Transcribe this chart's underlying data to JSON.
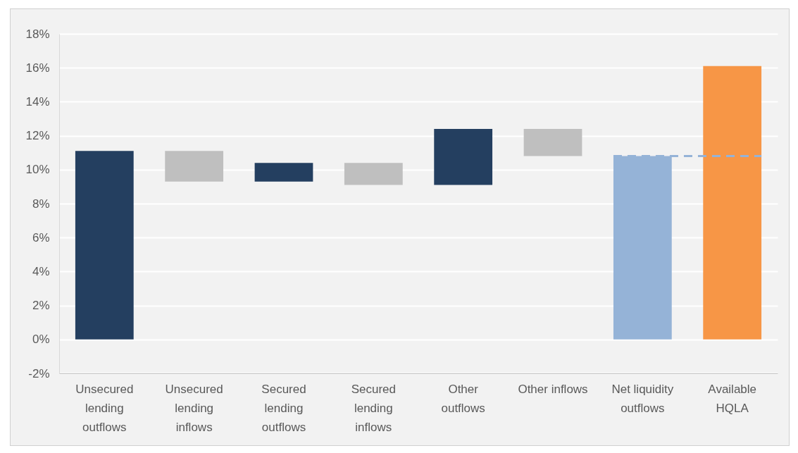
{
  "chart_data": {
    "type": "bar",
    "categories": [
      "Unsecured lending outflows",
      "Unsecured lending inflows",
      "Secured lending outflows",
      "Secured lending inflows",
      "Other outflows",
      "Other inflows",
      "Net liquidity outflows",
      "Available HQLA"
    ],
    "values": [
      11.1,
      1.8,
      1.1,
      1.3,
      3.3,
      1.6,
      10.8,
      16.1
    ],
    "base": [
      0,
      9.3,
      9.3,
      9.1,
      9.1,
      10.8,
      0,
      0
    ],
    "colors": [
      "#243f60",
      "#bfbfbf",
      "#243f60",
      "#bfbfbf",
      "#243f60",
      "#bfbfbf",
      "#95b3d7",
      "#f79646"
    ],
    "ylim": [
      -2,
      18
    ],
    "yticks": [
      {
        "value": -2,
        "label": "-2%"
      },
      {
        "value": 0,
        "label": "0%"
      },
      {
        "value": 2,
        "label": "2%"
      },
      {
        "value": 4,
        "label": "4%"
      },
      {
        "value": 6,
        "label": "6%"
      },
      {
        "value": 8,
        "label": "8%"
      },
      {
        "value": 10,
        "label": "10%"
      },
      {
        "value": 12,
        "label": "12%"
      },
      {
        "value": 14,
        "label": "14%"
      },
      {
        "value": 16,
        "label": "16%"
      },
      {
        "value": 18,
        "label": "18%"
      }
    ],
    "grid": "y",
    "ref_lines": [
      {
        "axis": "y",
        "value": 10.8,
        "color": "#95b3d7",
        "line_style": "dashed"
      }
    ]
  }
}
